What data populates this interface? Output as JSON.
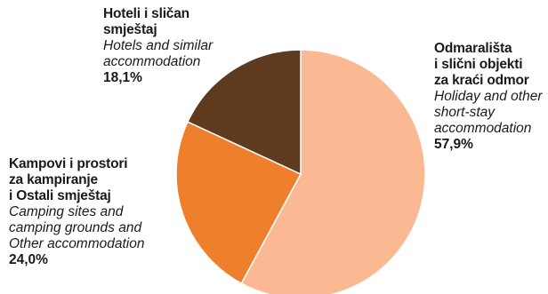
{
  "chart_data": {
    "type": "pie",
    "slices": [
      {
        "label_hr": [
          "Odmarališta",
          "i slični objekti",
          "za kraći odmor"
        ],
        "label_en": [
          "Holiday and other",
          "short-stay",
          "accommodation"
        ],
        "value": 57.9,
        "value_label": "57,9%",
        "color": "#FAB992"
      },
      {
        "label_hr": [
          "Kampovi i prostori",
          "za kampiranje",
          "i Ostali smještaj"
        ],
        "label_en": [
          "Camping sites and",
          "camping grounds and",
          "Other accommodation"
        ],
        "value": 24.0,
        "value_label": "24,0%",
        "color": "#EE7F2D"
      },
      {
        "label_hr": [
          "Hoteli i sličan",
          "smještaj"
        ],
        "label_en": [
          "Hotels and similar",
          "accommodation"
        ],
        "value": 18.1,
        "value_label": "18,1%",
        "color": "#5E3A1F"
      }
    ],
    "start_angle_deg": 0,
    "direction": "clockwise",
    "slice_border_color": "#ffffff"
  }
}
